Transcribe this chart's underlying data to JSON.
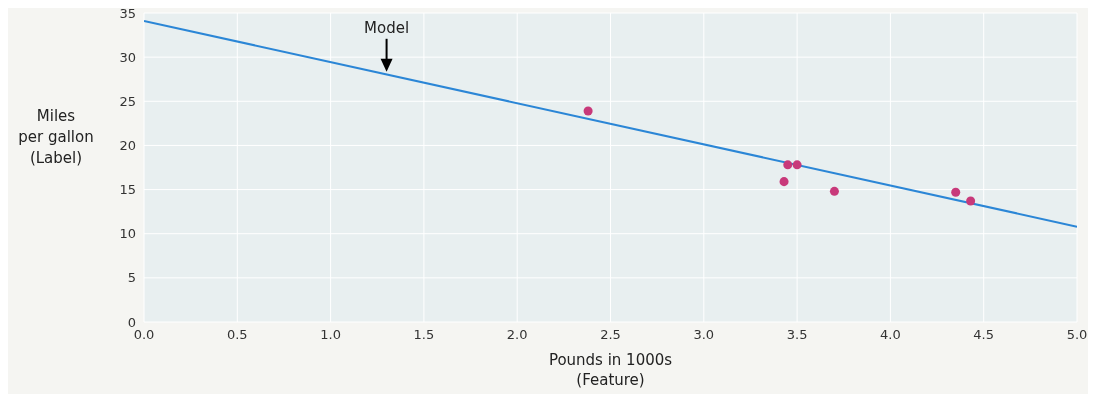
{
  "chart_data": {
    "type": "scatter",
    "xlabel": "Pounds in 1000s\n(Feature)",
    "ylabel": "Miles\nper gallon\n(Label)",
    "annotations": [
      {
        "text": "Model",
        "x": 1.3,
        "y": 28
      }
    ],
    "series": [
      {
        "type": "line",
        "color": "#2b86d6",
        "x": [
          0,
          5
        ],
        "values": [
          34.1,
          10.8
        ]
      },
      {
        "color": "#c8397a",
        "marker": "circle",
        "x": [
          2.38,
          3.45,
          3.5,
          3.43,
          3.7,
          4.35,
          4.43
        ],
        "values": [
          23.9,
          17.8,
          17.8,
          15.9,
          14.8,
          14.7,
          13.7
        ]
      }
    ],
    "xlim": [
      0,
      5
    ],
    "xticks": [
      {
        "value": 0,
        "label": "0.0"
      },
      0.5,
      {
        "value": 1,
        "label": "1.0"
      },
      1.5,
      {
        "value": 2,
        "label": "2.0"
      },
      2.5,
      {
        "value": 3,
        "label": "3.0"
      },
      3.5,
      {
        "value": 4,
        "label": "4.0"
      },
      4.5,
      {
        "value": 5,
        "label": "5.0"
      }
    ],
    "ylim": [
      0,
      35
    ],
    "yticks": [
      0,
      5,
      10,
      15,
      20,
      25,
      30,
      35
    ],
    "grid": true,
    "line_style": "solid"
  }
}
